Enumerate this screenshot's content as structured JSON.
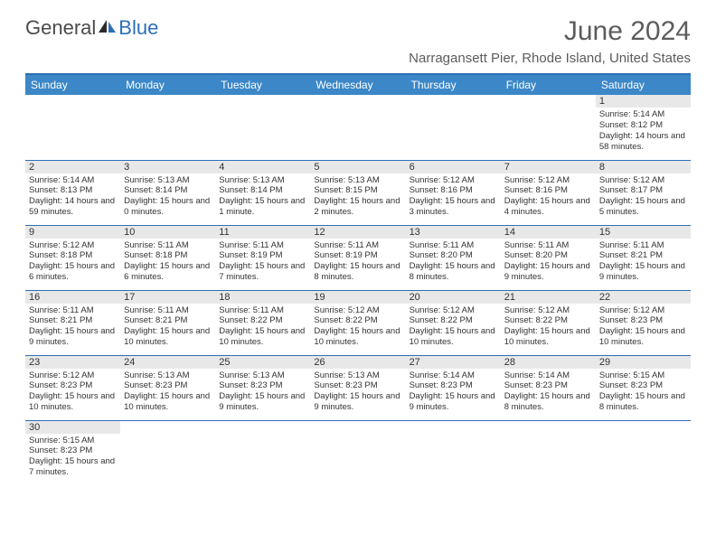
{
  "brand": {
    "part1": "General",
    "part2": "Blue"
  },
  "title": "June 2024",
  "location": "Narragansett Pier, Rhode Island, United States",
  "colors": {
    "header_bg": "#3b87c8",
    "header_text": "#ffffff",
    "border": "#2d6fb6",
    "daynum_bg": "#e8e8e8",
    "text": "#333333",
    "brand_gray": "#4a4a4a",
    "brand_blue": "#2d6fb6"
  },
  "weekdays": [
    "Sunday",
    "Monday",
    "Tuesday",
    "Wednesday",
    "Thursday",
    "Friday",
    "Saturday"
  ],
  "weeks": [
    [
      null,
      null,
      null,
      null,
      null,
      null,
      {
        "n": "1",
        "sr": "Sunrise: 5:14 AM",
        "ss": "Sunset: 8:12 PM",
        "dl": "Daylight: 14 hours and 58 minutes."
      }
    ],
    [
      {
        "n": "2",
        "sr": "Sunrise: 5:14 AM",
        "ss": "Sunset: 8:13 PM",
        "dl": "Daylight: 14 hours and 59 minutes."
      },
      {
        "n": "3",
        "sr": "Sunrise: 5:13 AM",
        "ss": "Sunset: 8:14 PM",
        "dl": "Daylight: 15 hours and 0 minutes."
      },
      {
        "n": "4",
        "sr": "Sunrise: 5:13 AM",
        "ss": "Sunset: 8:14 PM",
        "dl": "Daylight: 15 hours and 1 minute."
      },
      {
        "n": "5",
        "sr": "Sunrise: 5:13 AM",
        "ss": "Sunset: 8:15 PM",
        "dl": "Daylight: 15 hours and 2 minutes."
      },
      {
        "n": "6",
        "sr": "Sunrise: 5:12 AM",
        "ss": "Sunset: 8:16 PM",
        "dl": "Daylight: 15 hours and 3 minutes."
      },
      {
        "n": "7",
        "sr": "Sunrise: 5:12 AM",
        "ss": "Sunset: 8:16 PM",
        "dl": "Daylight: 15 hours and 4 minutes."
      },
      {
        "n": "8",
        "sr": "Sunrise: 5:12 AM",
        "ss": "Sunset: 8:17 PM",
        "dl": "Daylight: 15 hours and 5 minutes."
      }
    ],
    [
      {
        "n": "9",
        "sr": "Sunrise: 5:12 AM",
        "ss": "Sunset: 8:18 PM",
        "dl": "Daylight: 15 hours and 6 minutes."
      },
      {
        "n": "10",
        "sr": "Sunrise: 5:11 AM",
        "ss": "Sunset: 8:18 PM",
        "dl": "Daylight: 15 hours and 6 minutes."
      },
      {
        "n": "11",
        "sr": "Sunrise: 5:11 AM",
        "ss": "Sunset: 8:19 PM",
        "dl": "Daylight: 15 hours and 7 minutes."
      },
      {
        "n": "12",
        "sr": "Sunrise: 5:11 AM",
        "ss": "Sunset: 8:19 PM",
        "dl": "Daylight: 15 hours and 8 minutes."
      },
      {
        "n": "13",
        "sr": "Sunrise: 5:11 AM",
        "ss": "Sunset: 8:20 PM",
        "dl": "Daylight: 15 hours and 8 minutes."
      },
      {
        "n": "14",
        "sr": "Sunrise: 5:11 AM",
        "ss": "Sunset: 8:20 PM",
        "dl": "Daylight: 15 hours and 9 minutes."
      },
      {
        "n": "15",
        "sr": "Sunrise: 5:11 AM",
        "ss": "Sunset: 8:21 PM",
        "dl": "Daylight: 15 hours and 9 minutes."
      }
    ],
    [
      {
        "n": "16",
        "sr": "Sunrise: 5:11 AM",
        "ss": "Sunset: 8:21 PM",
        "dl": "Daylight: 15 hours and 9 minutes."
      },
      {
        "n": "17",
        "sr": "Sunrise: 5:11 AM",
        "ss": "Sunset: 8:21 PM",
        "dl": "Daylight: 15 hours and 10 minutes."
      },
      {
        "n": "18",
        "sr": "Sunrise: 5:11 AM",
        "ss": "Sunset: 8:22 PM",
        "dl": "Daylight: 15 hours and 10 minutes."
      },
      {
        "n": "19",
        "sr": "Sunrise: 5:12 AM",
        "ss": "Sunset: 8:22 PM",
        "dl": "Daylight: 15 hours and 10 minutes."
      },
      {
        "n": "20",
        "sr": "Sunrise: 5:12 AM",
        "ss": "Sunset: 8:22 PM",
        "dl": "Daylight: 15 hours and 10 minutes."
      },
      {
        "n": "21",
        "sr": "Sunrise: 5:12 AM",
        "ss": "Sunset: 8:22 PM",
        "dl": "Daylight: 15 hours and 10 minutes."
      },
      {
        "n": "22",
        "sr": "Sunrise: 5:12 AM",
        "ss": "Sunset: 8:23 PM",
        "dl": "Daylight: 15 hours and 10 minutes."
      }
    ],
    [
      {
        "n": "23",
        "sr": "Sunrise: 5:12 AM",
        "ss": "Sunset: 8:23 PM",
        "dl": "Daylight: 15 hours and 10 minutes."
      },
      {
        "n": "24",
        "sr": "Sunrise: 5:13 AM",
        "ss": "Sunset: 8:23 PM",
        "dl": "Daylight: 15 hours and 10 minutes."
      },
      {
        "n": "25",
        "sr": "Sunrise: 5:13 AM",
        "ss": "Sunset: 8:23 PM",
        "dl": "Daylight: 15 hours and 9 minutes."
      },
      {
        "n": "26",
        "sr": "Sunrise: 5:13 AM",
        "ss": "Sunset: 8:23 PM",
        "dl": "Daylight: 15 hours and 9 minutes."
      },
      {
        "n": "27",
        "sr": "Sunrise: 5:14 AM",
        "ss": "Sunset: 8:23 PM",
        "dl": "Daylight: 15 hours and 9 minutes."
      },
      {
        "n": "28",
        "sr": "Sunrise: 5:14 AM",
        "ss": "Sunset: 8:23 PM",
        "dl": "Daylight: 15 hours and 8 minutes."
      },
      {
        "n": "29",
        "sr": "Sunrise: 5:15 AM",
        "ss": "Sunset: 8:23 PM",
        "dl": "Daylight: 15 hours and 8 minutes."
      }
    ],
    [
      {
        "n": "30",
        "sr": "Sunrise: 5:15 AM",
        "ss": "Sunset: 8:23 PM",
        "dl": "Daylight: 15 hours and 7 minutes."
      },
      null,
      null,
      null,
      null,
      null,
      null
    ]
  ]
}
